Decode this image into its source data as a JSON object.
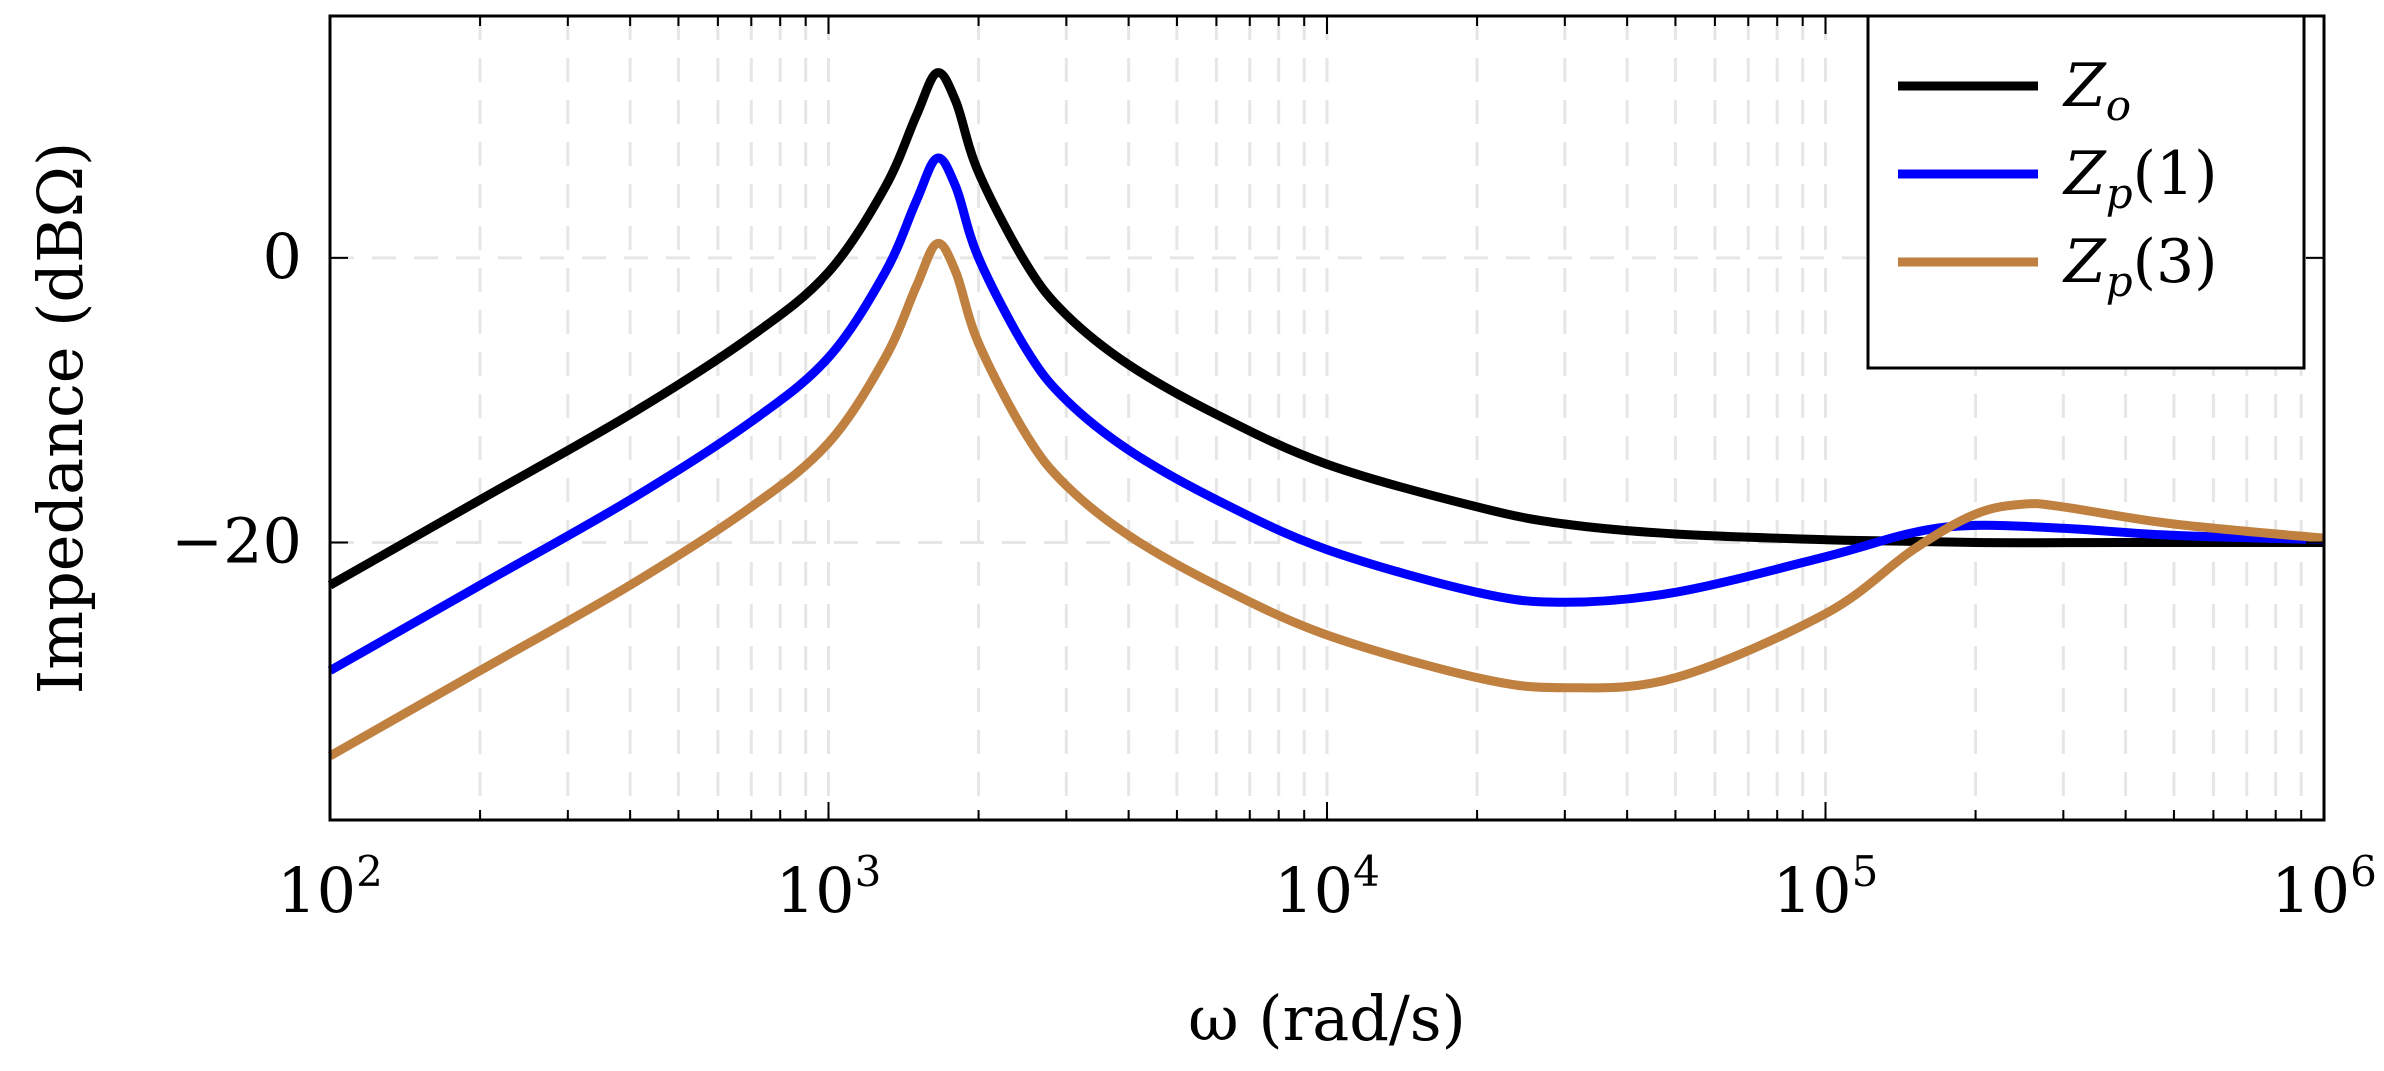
{
  "chart_data": {
    "type": "line",
    "title": "",
    "xlabel": "ω (rad/s)",
    "ylabel": "Impedance (dBΩ)",
    "xscale": "log",
    "xlim": [
      100,
      1000000
    ],
    "ylim": [
      -39.5,
      17
    ],
    "grid": true,
    "legend_position": "top-right",
    "x_ticks": [
      {
        "value": 100,
        "base": "10",
        "exp": "2"
      },
      {
        "value": 1000,
        "base": "10",
        "exp": "3"
      },
      {
        "value": 10000,
        "base": "10",
        "exp": "4"
      },
      {
        "value": 100000,
        "base": "10",
        "exp": "5"
      },
      {
        "value": 1000000,
        "base": "10",
        "exp": "6"
      }
    ],
    "y_ticks": [
      {
        "value": 0,
        "label": "0"
      },
      {
        "value": -20,
        "label": "−20"
      }
    ],
    "series": [
      {
        "name": "Zo",
        "label_main": "Z",
        "label_sub": "o",
        "label_suffix": "",
        "color": "#000000",
        "x": [
          100,
          200,
          400,
          700,
          1000,
          1300,
          1500,
          1650,
          1800,
          2000,
          2500,
          3000,
          4000,
          6000,
          10000,
          20000,
          30000,
          50000,
          100000,
          200000,
          400000,
          1000000
        ],
        "y": [
          -23,
          -17,
          -11,
          -5.5,
          -1,
          5,
          10,
          13,
          11,
          6,
          -0.5,
          -4,
          -7.5,
          -11,
          -14.5,
          -17.5,
          -18.7,
          -19.4,
          -19.8,
          -20,
          -20,
          -20
        ]
      },
      {
        "name": "Zp(1)",
        "label_main": "Z",
        "label_sub": "p",
        "label_suffix": "(1)",
        "color": "#0000ff",
        "x": [
          100,
          200,
          400,
          700,
          1000,
          1300,
          1500,
          1650,
          1800,
          2000,
          2500,
          3000,
          4000,
          6000,
          10000,
          20000,
          30000,
          50000,
          100000,
          150000,
          200000,
          300000,
          500000,
          1000000
        ],
        "y": [
          -29,
          -23,
          -17,
          -11.5,
          -7,
          -1,
          4,
          7,
          5,
          0,
          -6.5,
          -10,
          -13.5,
          -17,
          -20.5,
          -23.5,
          -24.2,
          -23.5,
          -21,
          -19.3,
          -18.8,
          -19,
          -19.5,
          -19.8
        ]
      },
      {
        "name": "Zp(3)",
        "label_main": "Z",
        "label_sub": "p",
        "label_suffix": "(3)",
        "color": "#bf8040",
        "x": [
          100,
          200,
          400,
          700,
          1000,
          1300,
          1500,
          1650,
          1800,
          2000,
          2500,
          3000,
          4000,
          6000,
          10000,
          20000,
          30000,
          50000,
          100000,
          150000,
          200000,
          250000,
          300000,
          500000,
          1000000
        ],
        "y": [
          -35,
          -29,
          -23,
          -17.5,
          -13,
          -7,
          -2,
          1,
          -1,
          -6,
          -12.5,
          -16,
          -19.5,
          -23,
          -26.5,
          -29.5,
          -30.2,
          -29.5,
          -25,
          -20.5,
          -18,
          -17.3,
          -17.5,
          -18.7,
          -19.7
        ]
      }
    ]
  }
}
